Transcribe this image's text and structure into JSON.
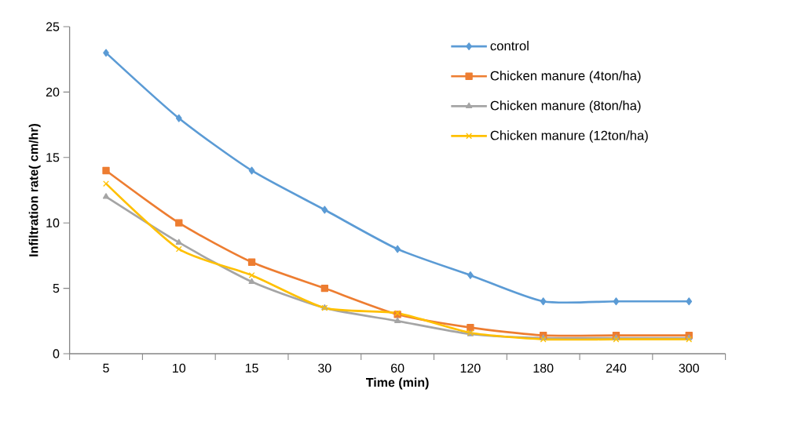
{
  "chart_data": {
    "type": "line",
    "xlabel": "Time (min)",
    "ylabel": "Infiltration rate( cm/hr)",
    "categories": [
      "5",
      "10",
      "15",
      "30",
      "60",
      "120",
      "180",
      "240",
      "300"
    ],
    "series": [
      {
        "name": "control",
        "color": "#5b9bd5",
        "marker": "diamond",
        "values": [
          23,
          18,
          14,
          11,
          8,
          6,
          4,
          4,
          4
        ]
      },
      {
        "name": "Chicken manure (4ton/ha)",
        "color": "#ed7d31",
        "marker": "square",
        "values": [
          14,
          10,
          7,
          5,
          3,
          2,
          1.4,
          1.4,
          1.4
        ]
      },
      {
        "name": "Chicken manure (8ton/ha)",
        "color": "#a5a5a5",
        "marker": "triangle",
        "values": [
          12,
          8.5,
          5.5,
          3.5,
          2.5,
          1.5,
          1.2,
          1.2,
          1.2
        ]
      },
      {
        "name": "Chicken manure (12ton/ha)",
        "color": "#ffc000",
        "marker": "cross",
        "values": [
          13,
          8,
          6,
          3.5,
          3.1,
          1.6,
          1.1,
          1.1,
          1.1
        ]
      }
    ],
    "ylim": [
      0,
      25
    ],
    "yticks": [
      0,
      5,
      10,
      15,
      20,
      25
    ],
    "grid": false,
    "legend": "top right",
    "line_style": "solid"
  }
}
